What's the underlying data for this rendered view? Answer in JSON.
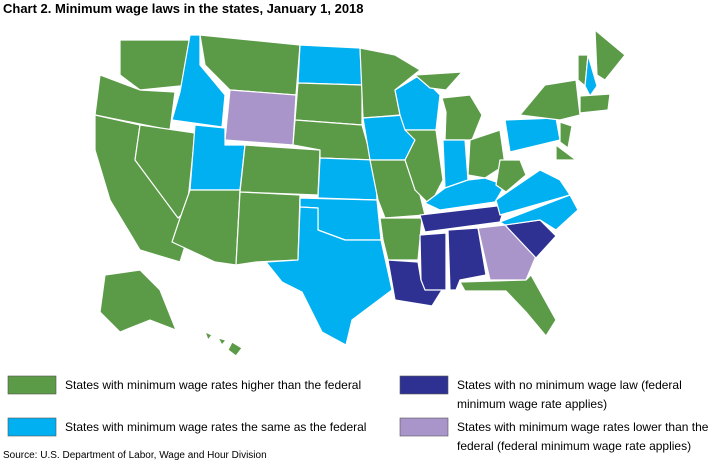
{
  "header": {
    "title": "Chart 2. Minimum wage laws in the states, January 1, 2018"
  },
  "legend": [
    {
      "color": "#5b9a47",
      "lines": [
        "States with minimum wage rates higher than the federal"
      ]
    },
    {
      "color": "#00b0f0",
      "lines": [
        "States with minimum wage rates the same as the federal"
      ]
    },
    {
      "color": "#2e3192",
      "lines": [
        "States with no minimum wage law (federal",
        "minimum wage rate applies)"
      ]
    },
    {
      "color": "#a995c9",
      "lines": [
        "States with minimum wage rates lower than the",
        "federal (federal minimum wage rate applies)"
      ]
    }
  ],
  "source": "Source: U.S. Department of Labor, Wage and Hour Division"
}
